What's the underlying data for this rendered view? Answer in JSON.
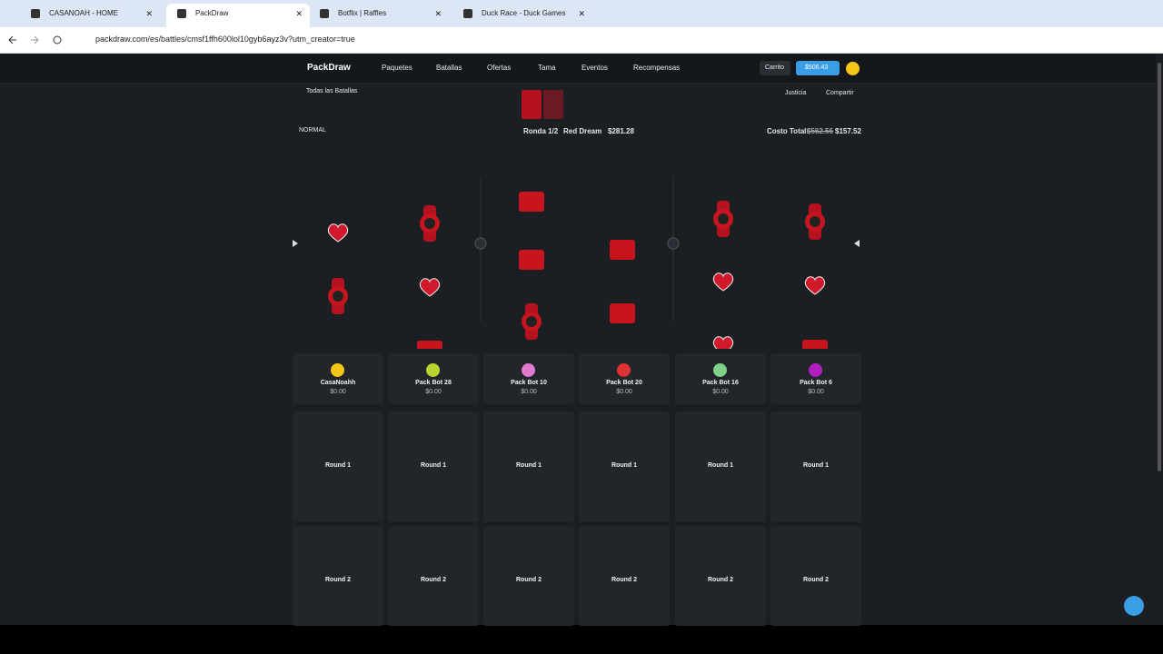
{
  "browser": {
    "tabs": [
      "CASANOAH - HOME",
      "PackDraw",
      "Botflix | Raffles",
      "Duck Race - Duck Games"
    ],
    "url": "packdraw.com/es/battles/cmsf1ffh600lol10gyb6ayz3v?utm_creator=true"
  },
  "nav": {
    "logo": "PackDraw",
    "links": [
      "Paquetes",
      "Batallas",
      "Ofertas",
      "Tama",
      "Eventos",
      "Recompensas"
    ],
    "cart": "Carrito",
    "balance": "$506.43"
  },
  "battle": {
    "back": "Todas las Batallas",
    "fairness": "Justicia",
    "share": "Compartir",
    "mode": "NORMAL",
    "round": "Ronda 1/2",
    "pack": "Red Dream",
    "pack_price": "$281.28",
    "total_label": "Costo Total:",
    "total_old": "$562.56",
    "total": "$157.52"
  },
  "players": [
    {
      "name": "CasaNoahh",
      "amount": "$0.00"
    },
    {
      "name": "Pack Bot 28",
      "amount": "$0.00"
    },
    {
      "name": "Pack Bot 10",
      "amount": "$0.00"
    },
    {
      "name": "Pack Bot 20",
      "amount": "$0.00"
    },
    {
      "name": "Pack Bot 16",
      "amount": "$0.00"
    },
    {
      "name": "Pack Bot 6",
      "amount": "$0.00"
    }
  ],
  "rounds": [
    "Round 1",
    "Round 2"
  ]
}
